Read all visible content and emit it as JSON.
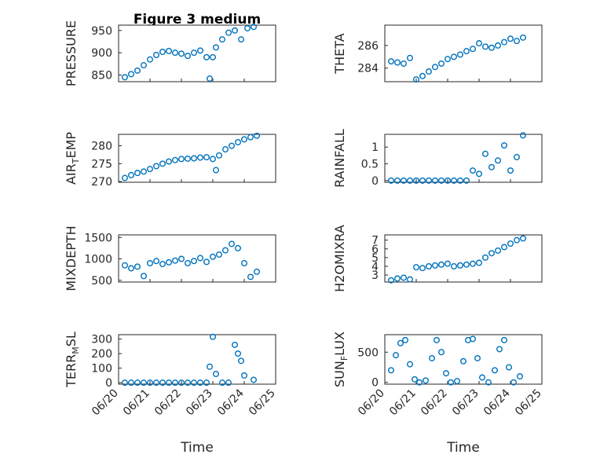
{
  "figure_title": "Figure 3 medium",
  "xlabel": "Time",
  "colors": {
    "marker": "#0072BD",
    "axis": "#262626",
    "grid": "#b0b0b0"
  },
  "chart_data": [
    {
      "type": "scatter",
      "ylabel": "PRESSURE",
      "yticks": [
        850,
        900,
        950
      ],
      "ylim": [
        835,
        962
      ],
      "xlim": [
        0,
        5
      ],
      "x": [
        0.2,
        0.4,
        0.6,
        0.8,
        1.0,
        1.2,
        1.4,
        1.6,
        1.8,
        2.0,
        2.2,
        2.4,
        2.6,
        2.8,
        2.9,
        3.0,
        3.1,
        3.3,
        3.5,
        3.7,
        3.9,
        4.1,
        4.3
      ],
      "y": [
        845,
        852,
        860,
        872,
        885,
        895,
        902,
        904,
        900,
        898,
        893,
        900,
        905,
        890,
        842,
        890,
        912,
        930,
        945,
        950,
        930,
        955,
        958
      ]
    },
    {
      "type": "scatter",
      "ylabel": "THETA",
      "yticks": [
        284,
        286
      ],
      "ylim": [
        282.8,
        287.8
      ],
      "xlim": [
        0,
        5
      ],
      "x": [
        0.2,
        0.4,
        0.6,
        0.8,
        1.0,
        1.2,
        1.4,
        1.6,
        1.8,
        2.0,
        2.2,
        2.4,
        2.6,
        2.8,
        3.0,
        3.2,
        3.4,
        3.6,
        3.8,
        4.0,
        4.2,
        4.4
      ],
      "y": [
        284.6,
        284.5,
        284.4,
        284.9,
        283.0,
        283.3,
        283.7,
        284.1,
        284.4,
        284.8,
        285.0,
        285.2,
        285.5,
        285.7,
        286.2,
        285.9,
        285.8,
        286.0,
        286.3,
        286.6,
        286.4,
        286.7
      ]
    },
    {
      "type": "scatter",
      "ylabel": "AIR_TEMP",
      "yticks": [
        270,
        275,
        280
      ],
      "ylim": [
        269.8,
        283.2
      ],
      "xlim": [
        0,
        5
      ],
      "x": [
        0.2,
        0.4,
        0.6,
        0.8,
        1.0,
        1.2,
        1.4,
        1.6,
        1.8,
        2.0,
        2.2,
        2.4,
        2.6,
        2.8,
        3.0,
        3.1,
        3.2,
        3.4,
        3.6,
        3.8,
        4.0,
        4.2,
        4.4
      ],
      "y": [
        271,
        271.8,
        272.4,
        272.8,
        273.5,
        274.3,
        275.0,
        275.6,
        276.0,
        276.3,
        276.4,
        276.5,
        276.7,
        276.8,
        276.3,
        273.2,
        277.3,
        279.0,
        280.0,
        281.0,
        281.8,
        282.4,
        282.8
      ]
    },
    {
      "type": "scatter",
      "ylabel": "RAINFALL",
      "yticks": [
        0,
        0.5,
        1
      ],
      "ylim": [
        -0.05,
        1.38
      ],
      "xlim": [
        0,
        5
      ],
      "x": [
        0.2,
        0.4,
        0.6,
        0.8,
        1.0,
        1.2,
        1.4,
        1.6,
        1.8,
        2.0,
        2.2,
        2.4,
        2.6,
        2.8,
        3.0,
        3.2,
        3.4,
        3.6,
        3.8,
        4.0,
        4.2,
        4.4
      ],
      "y": [
        0,
        0,
        0,
        0,
        0,
        0,
        0,
        0,
        0,
        0,
        0,
        0,
        0,
        0.3,
        0.2,
        0.8,
        0.4,
        0.6,
        1.05,
        0.3,
        0.7,
        1.35
      ]
    },
    {
      "type": "scatter",
      "ylabel": "MIXDEPTH",
      "yticks": [
        500,
        1000,
        1500
      ],
      "ylim": [
        460,
        1560
      ],
      "xlim": [
        0,
        5
      ],
      "x": [
        0.2,
        0.4,
        0.6,
        0.8,
        1.0,
        1.2,
        1.4,
        1.6,
        1.8,
        2.0,
        2.2,
        2.4,
        2.6,
        2.8,
        3.0,
        3.2,
        3.4,
        3.6,
        3.8,
        4.0,
        4.2,
        4.4
      ],
      "y": [
        850,
        780,
        820,
        600,
        900,
        950,
        880,
        920,
        960,
        1000,
        900,
        950,
        1020,
        930,
        1050,
        1100,
        1200,
        1350,
        1250,
        900,
        580,
        700
      ]
    },
    {
      "type": "scatter",
      "ylabel": "H2OMIXRA",
      "yticks": [
        3,
        4,
        5,
        6,
        7
      ],
      "ylim": [
        2.2,
        7.6
      ],
      "xlim": [
        0,
        5
      ],
      "x": [
        0.2,
        0.4,
        0.6,
        0.8,
        1.0,
        1.2,
        1.4,
        1.6,
        1.8,
        2.0,
        2.2,
        2.4,
        2.6,
        2.8,
        3.0,
        3.2,
        3.4,
        3.6,
        3.8,
        4.0,
        4.2,
        4.4
      ],
      "y": [
        2.4,
        2.6,
        2.7,
        2.5,
        3.9,
        3.8,
        4.0,
        4.1,
        4.2,
        4.3,
        4.0,
        4.1,
        4.2,
        4.3,
        4.4,
        5.0,
        5.5,
        5.8,
        6.2,
        6.6,
        7.0,
        7.2
      ]
    },
    {
      "type": "scatter",
      "ylabel": "TERR_MSL",
      "yticks": [
        0,
        100,
        200,
        300
      ],
      "ylim": [
        -10,
        330
      ],
      "xlim": [
        0,
        5
      ],
      "x": [
        0.2,
        0.4,
        0.6,
        0.8,
        1.0,
        1.2,
        1.4,
        1.6,
        1.8,
        2.0,
        2.2,
        2.4,
        2.6,
        2.8,
        2.9,
        3.0,
        3.1,
        3.3,
        3.5,
        3.7,
        3.8,
        3.9,
        4.0,
        4.3
      ],
      "y": [
        0,
        0,
        0,
        0,
        0,
        0,
        0,
        0,
        0,
        0,
        0,
        0,
        0,
        0,
        110,
        315,
        60,
        0,
        0,
        260,
        200,
        150,
        50,
        20
      ]
    },
    {
      "type": "scatter",
      "ylabel": "SUN_FLUX",
      "yticks": [
        0,
        500
      ],
      "ylim": [
        -30,
        790
      ],
      "xlim": [
        0,
        5
      ],
      "x": [
        0.2,
        0.35,
        0.5,
        0.65,
        0.8,
        0.95,
        1.1,
        1.3,
        1.5,
        1.65,
        1.8,
        1.95,
        2.1,
        2.3,
        2.5,
        2.65,
        2.8,
        2.95,
        3.1,
        3.3,
        3.5,
        3.65,
        3.8,
        3.95,
        4.1,
        4.3
      ],
      "y": [
        200,
        450,
        650,
        700,
        300,
        50,
        0,
        30,
        400,
        700,
        500,
        150,
        0,
        20,
        350,
        700,
        720,
        400,
        80,
        0,
        200,
        550,
        700,
        250,
        0,
        100
      ]
    }
  ],
  "xticks": [
    "06/20",
    "06/21",
    "06/22",
    "06/23",
    "06/24",
    "06/25"
  ]
}
